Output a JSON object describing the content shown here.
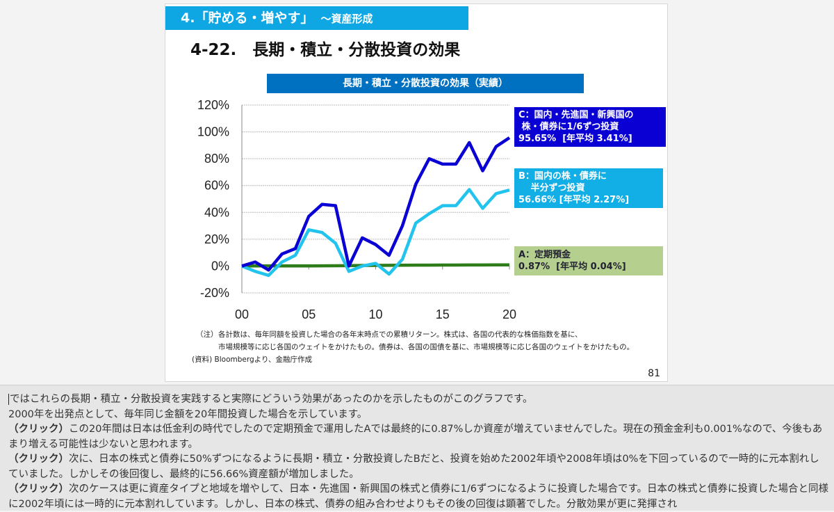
{
  "slide": {
    "section": "4.「貯める・増やす」",
    "section_sub": "～資産形成",
    "title": "4-22.　長期・積立・分散投資の効果",
    "note_label": "（注）",
    "note_line1": "各計数は、毎年同額を投資した場合の各年末時点での累積リターン。株式は、各国の代表的な株価指数を基に、",
    "note_line2": "市場規模等に応じ各国のウェイトをかけたもの。債券は、各国の国債を基に、市場規模等に応じ各国のウェイトをかけたもの。",
    "source": "(資料) Bloombergより、金融庁作成",
    "page_number": "81"
  },
  "chart_data": {
    "type": "line",
    "title": "長期・積立・分散投資の効果（実績）",
    "x": [
      0,
      1,
      2,
      3,
      4,
      5,
      6,
      7,
      8,
      9,
      10,
      11,
      12,
      13,
      14,
      15,
      16,
      17,
      18,
      19,
      20
    ],
    "x_tick_labels": [
      "00",
      "05",
      "10",
      "15",
      "20"
    ],
    "x_ticks": [
      0,
      5,
      10,
      15,
      20
    ],
    "ylim": [
      -20,
      120
    ],
    "y_ticks": [
      -20,
      0,
      20,
      40,
      60,
      80,
      100,
      120
    ],
    "y_tick_labels": [
      "-20%",
      "0%",
      "20%",
      "40%",
      "60%",
      "80%",
      "100%",
      "120%"
    ],
    "grid": true,
    "series": [
      {
        "name": "C：国内・先進国・新興国の\n 株・債券に1/6ずつ投資\n95.65%  [年平均 3.41%]",
        "color": "#0a00d4",
        "values": [
          0,
          3,
          -3,
          9,
          13,
          37,
          46,
          45,
          0,
          21,
          16,
          8,
          30,
          61,
          80,
          76,
          76,
          92,
          71,
          89,
          95.65
        ]
      },
      {
        "name": "B：国内の株・債券に\n　 半分ずつ投資\n56.66% [年平均 2.27%]",
        "color": "#22c4ee",
        "values": [
          0,
          -4,
          -7,
          3,
          8,
          27,
          25,
          17,
          -4,
          0,
          2,
          -6,
          5,
          32,
          39,
          45,
          45,
          57,
          43,
          54,
          56.66
        ]
      },
      {
        "name": "A：定期預金\n0.87%  [年平均 0.04%]",
        "color": "#2e7d1a",
        "values": [
          0,
          0.1,
          0.1,
          0.1,
          0.1,
          0.1,
          0.15,
          0.2,
          0.3,
          0.4,
          0.5,
          0.55,
          0.6,
          0.65,
          0.7,
          0.72,
          0.75,
          0.78,
          0.8,
          0.84,
          0.87
        ]
      }
    ]
  },
  "notes": {
    "click": "（クリック）",
    "line1": "ではこれらの長期・積立・分散投資を実践すると実際にどういう効果があったのかを示したものがこのグラフです。",
    "line2": "2000年を出発点として、毎年同じ金額を20年間投資した場合を示しています。",
    "p1": "この20年間は日本は低金利の時代でしたので定期預金で運用したAでは最終的に0.87%しか資産が増えていませんでした。現在の預金金利も0.001%なので、今後もあまり増える可能性は少ないと思われます。",
    "p2": "次に、日本の株式と債券に50%ずつになるように長期・積立・分散投資したBだと、投資を始めた2002年頃や2008年頃は0%を下回っているので一時的に元本割れしていました。しかしその後回復し、最終的に56.66%資産額が増加しました。",
    "p3": "次のケースは更に資産タイプと地域を増やして、日本・先進国・新興国の株式と債券に1/6ずつになるように投資した場合です。日本の株式と債券に投資した場合と同様に2002年頃には一時的に元本割れしています。しかし、日本の株式、債券の組み合わせよりもその後の回復は顕著でした。分散効果が更に発揮され"
  }
}
